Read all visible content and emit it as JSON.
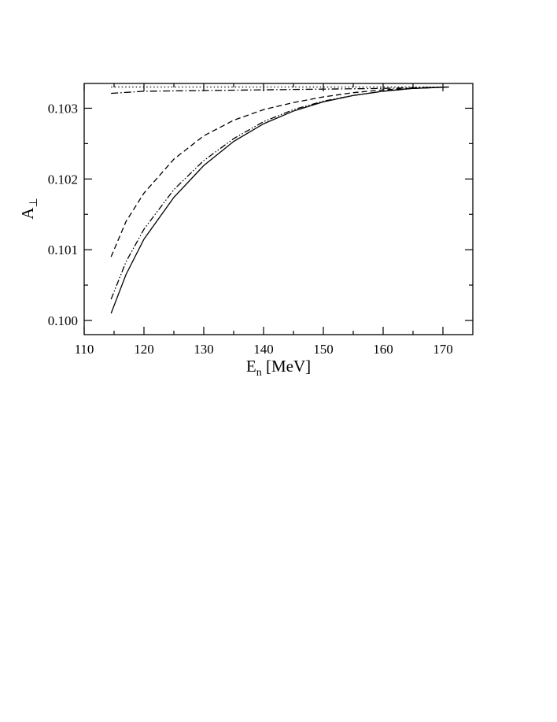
{
  "chart_data": {
    "type": "line",
    "xlabel": "E",
    "xlabel_sub": "n",
    "xlabel_unit": " [MeV]",
    "ylabel": "A",
    "ylabel_sub": "⊥",
    "xlim": [
      110,
      175
    ],
    "ylim": [
      0.0998,
      0.10335
    ],
    "xticks": [
      110,
      120,
      130,
      140,
      150,
      160,
      170
    ],
    "yticks": [
      0.1,
      0.101,
      0.102,
      0.103
    ],
    "ytick_labels": [
      "0.100",
      "0.101",
      "0.102",
      "0.103"
    ],
    "grid": false,
    "legend": "none",
    "series": [
      {
        "style": "dotted",
        "x": [
          114.5,
          120,
          130,
          140,
          150,
          160,
          171
        ],
        "y": [
          0.1033,
          0.1033,
          0.1033,
          0.1033,
          0.1033,
          0.1033,
          0.1033
        ]
      },
      {
        "style": "dash-dot",
        "x": [
          114.5,
          120,
          130,
          140,
          150,
          160,
          171
        ],
        "y": [
          0.10321,
          0.10324,
          0.10325,
          0.10326,
          0.10327,
          0.10328,
          0.1033
        ]
      },
      {
        "style": "dashed",
        "x": [
          114.5,
          117,
          120,
          125,
          130,
          135,
          140,
          145,
          150,
          155,
          160,
          165,
          171
        ],
        "y": [
          0.1009,
          0.1014,
          0.1018,
          0.10228,
          0.10261,
          0.10283,
          0.10298,
          0.10308,
          0.10316,
          0.10322,
          0.10326,
          0.10328,
          0.1033
        ]
      },
      {
        "style": "dash-dot-dot",
        "x": [
          114.5,
          117,
          120,
          125,
          130,
          135,
          140,
          145,
          150,
          155,
          160,
          165,
          171
        ],
        "y": [
          0.1003,
          0.10083,
          0.10129,
          0.10185,
          0.10226,
          0.10257,
          0.10281,
          0.10298,
          0.1031,
          0.10318,
          0.10324,
          0.10328,
          0.1033
        ]
      },
      {
        "style": "solid",
        "x": [
          114.5,
          117,
          120,
          125,
          130,
          135,
          140,
          145,
          150,
          155,
          160,
          165,
          171
        ],
        "y": [
          0.1001,
          0.10065,
          0.10115,
          0.10174,
          0.10219,
          0.10253,
          0.10278,
          0.10296,
          0.10309,
          0.10318,
          0.10324,
          0.10328,
          0.1033
        ]
      }
    ]
  }
}
